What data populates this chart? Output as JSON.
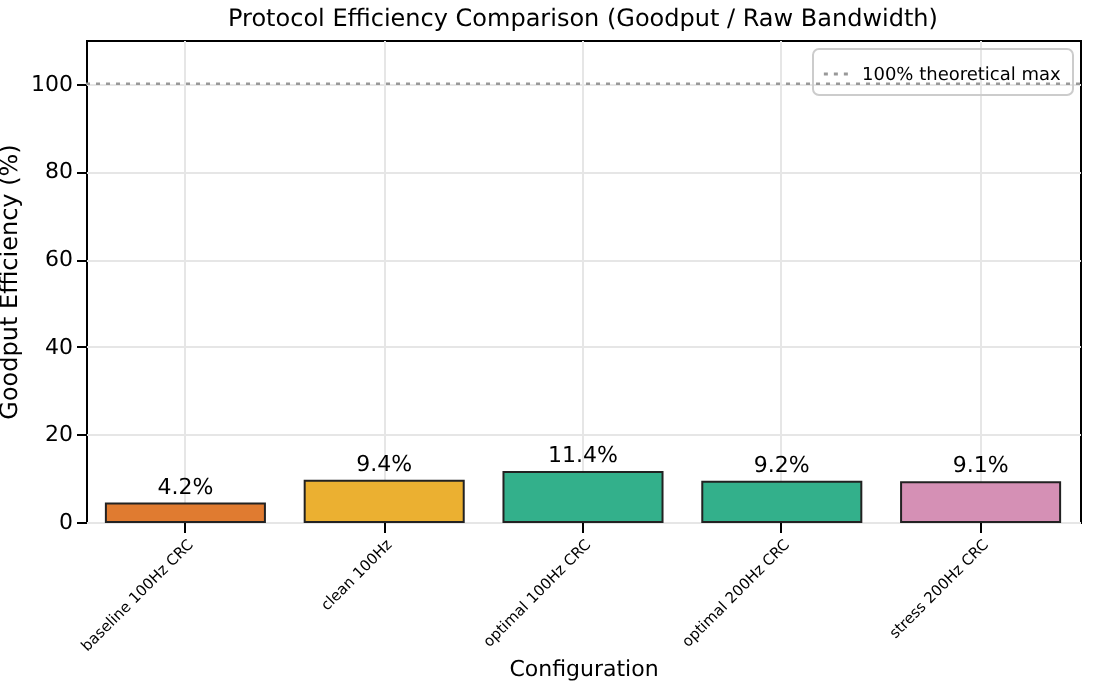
{
  "chart_data": {
    "type": "bar",
    "title": "Protocol Efficiency Comparison (Goodput / Raw Bandwidth)",
    "xlabel": "Configuration",
    "ylabel": "Goodput Efficiency (%)",
    "categories": [
      "baseline 100Hz CRC",
      "clean 100Hz",
      "optimal 100Hz CRC",
      "optimal 200Hz CRC",
      "stress 200Hz CRC"
    ],
    "values": [
      4.2,
      9.4,
      11.4,
      9.2,
      9.1
    ],
    "value_labels": [
      "4.2%",
      "9.4%",
      "11.4%",
      "9.2%",
      "9.1%"
    ],
    "colors": [
      "#e07b30",
      "#ebb031",
      "#33b08b",
      "#33b08b",
      "#d590b5"
    ],
    "ylim": [
      0,
      110
    ],
    "yticks": [
      0,
      20,
      40,
      60,
      80,
      100
    ],
    "grid": true,
    "legend": "top right",
    "ref_lines": [
      {
        "axis": "y",
        "value": 100,
        "label": "100% theoretical max",
        "color": "#999999",
        "line_style": "dotted"
      }
    ]
  }
}
